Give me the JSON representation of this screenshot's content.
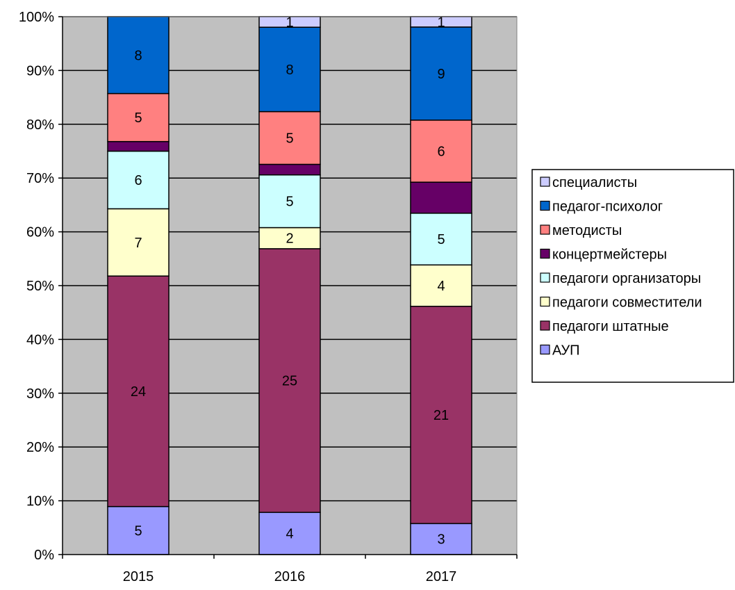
{
  "chart_data": {
    "type": "bar",
    "stacked": "percent",
    "categories": [
      "2015",
      "2016",
      "2017"
    ],
    "series": [
      {
        "name": "АУП",
        "values": [
          5,
          4,
          3
        ],
        "color": "#9999FF"
      },
      {
        "name": "педагоги штатные",
        "values": [
          24,
          25,
          21
        ],
        "color": "#993366"
      },
      {
        "name": "педагоги совместители",
        "values": [
          7,
          2,
          4
        ],
        "color": "#FFFFCC"
      },
      {
        "name": "педагоги организаторы",
        "values": [
          6,
          5,
          5
        ],
        "color": "#CCFFFF"
      },
      {
        "name": "концертмейстеры",
        "values": [
          1,
          1,
          3
        ],
        "color": "#660066"
      },
      {
        "name": "методисты",
        "values": [
          5,
          5,
          6
        ],
        "color": "#FF8080"
      },
      {
        "name": "педагог-психолог",
        "values": [
          8,
          8,
          9
        ],
        "color": "#0066CC"
      },
      {
        "name": "специалисты",
        "values": [
          0,
          1,
          1
        ],
        "color": "#CCCCFF"
      }
    ],
    "data_labels": [
      [
        "5",
        "4",
        "3"
      ],
      [
        "24",
        "25",
        "21"
      ],
      [
        "7",
        "2",
        "4"
      ],
      [
        "6",
        "5",
        "5"
      ],
      [
        "",
        "",
        ""
      ],
      [
        "5",
        "5",
        "6"
      ],
      [
        "8",
        "8",
        "9"
      ],
      [
        "",
        "1",
        "1"
      ]
    ],
    "y_ticks": [
      "0%",
      "10%",
      "20%",
      "30%",
      "40%",
      "50%",
      "60%",
      "70%",
      "80%",
      "90%",
      "100%"
    ],
    "ylim": [
      0,
      100
    ],
    "grid": true,
    "plot_background": "#C0C0C0",
    "legend_position": "right",
    "title": "",
    "xlabel": "",
    "ylabel": ""
  }
}
